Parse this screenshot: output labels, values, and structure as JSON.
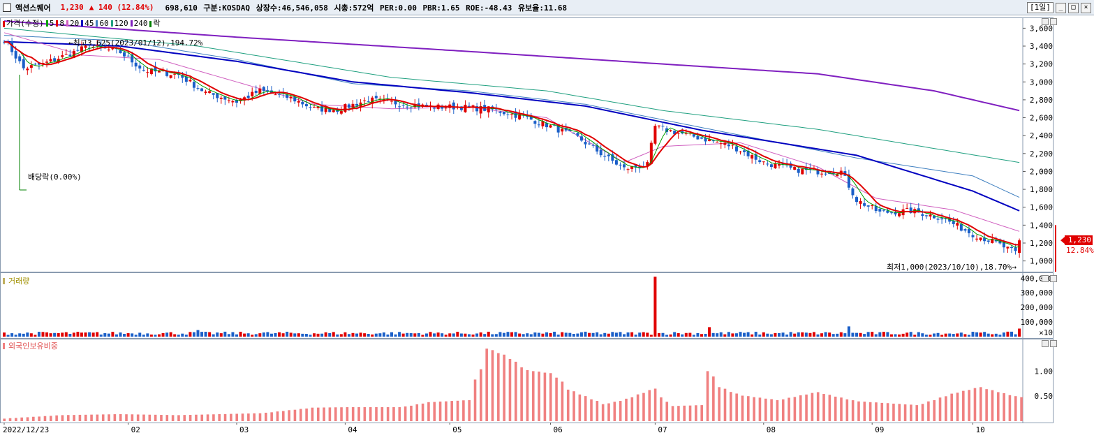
{
  "header": {
    "name": "액션스퀘어",
    "price": "1,230",
    "change": "▲ 140 (12.84%)",
    "info": "698,610  구분:KOSDAQ 상장수:46,546,058 시총:572억  PER:0.00 PBR:1.65 ROE:-48.43 유보율:11.68",
    "period": "[1일]",
    "btn_min": "_",
    "btn_max": "□",
    "btn_close": "×"
  },
  "legend": {
    "price": [
      "가격(수정)",
      "5",
      "8",
      "20",
      "45",
      "60",
      "120",
      "240",
      "락"
    ],
    "price_colors": [
      "#e00000",
      "#00a000",
      "#e00000",
      "#d060c0",
      "#0000c0",
      "#4080c0",
      "#20a080",
      "#8020c0",
      "#008000"
    ],
    "volume": "거래량",
    "foreign": "외국인보유비중"
  },
  "annotations": {
    "high": "최고3,625(2023/01/12),194.72%",
    "low": "최저1,000(2023/10/10),18.70%",
    "dividend": "배당락(0.00%)"
  },
  "current": {
    "price_label": "1,230",
    "pct_label": "12.84%"
  },
  "colors": {
    "up": "#e00000",
    "down": "#1a5fc8",
    "ma5": "#00a000",
    "ma8": "#e00000",
    "ma20": "#d060c0",
    "ma45": "#0000c0",
    "ma60": "#4080c0",
    "ma120": "#20a080",
    "ma240": "#8020c0",
    "foreign": "#f08080"
  },
  "chart_data": [
    {
      "type": "candlestick",
      "title": "",
      "x": [
        "2022/12/23",
        "02",
        "03",
        "04",
        "05",
        "06",
        "07",
        "08",
        "09",
        "10"
      ],
      "y_ticks": [
        1000,
        1200,
        1400,
        1600,
        1800,
        2000,
        2200,
        2400,
        2600,
        2800,
        3000,
        3200,
        3400,
        3600
      ],
      "y_tick_labels": [
        "1,000",
        "1,200",
        "1,400",
        "1,600",
        "1,800",
        "2,000",
        "2,200",
        "2,400",
        "2,600",
        "2,800",
        "3,000",
        "3,200",
        "3,400",
        "3,600"
      ],
      "ylim": [
        880,
        3720
      ],
      "close_anchors": [
        [
          0,
          3480
        ],
        [
          5,
          3150
        ],
        [
          10,
          3200
        ],
        [
          16,
          3300
        ],
        [
          22,
          3400
        ],
        [
          30,
          3330
        ],
        [
          36,
          3130
        ],
        [
          45,
          3080
        ],
        [
          52,
          2880
        ],
        [
          60,
          2780
        ],
        [
          66,
          2900
        ],
        [
          74,
          2820
        ],
        [
          80,
          2700
        ],
        [
          86,
          2690
        ],
        [
          94,
          2800
        ],
        [
          102,
          2760
        ],
        [
          110,
          2720
        ],
        [
          118,
          2720
        ],
        [
          126,
          2690
        ],
        [
          134,
          2610
        ],
        [
          140,
          2520
        ],
        [
          148,
          2380
        ],
        [
          154,
          2200
        ],
        [
          160,
          2030
        ],
        [
          166,
          2070
        ],
        [
          168,
          2500
        ],
        [
          172,
          2450
        ],
        [
          180,
          2370
        ],
        [
          188,
          2280
        ],
        [
          196,
          2100
        ],
        [
          204,
          2020
        ],
        [
          210,
          2000
        ],
        [
          216,
          2000
        ],
        [
          220,
          1680
        ],
        [
          226,
          1540
        ],
        [
          234,
          1560
        ],
        [
          242,
          1480
        ],
        [
          250,
          1300
        ],
        [
          256,
          1200
        ],
        [
          261,
          1090
        ],
        [
          262,
          1230
        ]
      ],
      "ma240_anchors": [
        [
          0,
          3680
        ],
        [
          60,
          3500
        ],
        [
          120,
          3340
        ],
        [
          170,
          3200
        ],
        [
          210,
          3090
        ],
        [
          240,
          2900
        ],
        [
          262,
          2680
        ]
      ],
      "ma120_anchors": [
        [
          0,
          3600
        ],
        [
          50,
          3400
        ],
        [
          100,
          3050
        ],
        [
          140,
          2900
        ],
        [
          170,
          2680
        ],
        [
          210,
          2470
        ],
        [
          262,
          2100
        ]
      ],
      "ma60_anchors": [
        [
          0,
          3520
        ],
        [
          30,
          3460
        ],
        [
          60,
          3250
        ],
        [
          90,
          2980
        ],
        [
          120,
          2900
        ],
        [
          150,
          2750
        ],
        [
          180,
          2490
        ],
        [
          220,
          2150
        ],
        [
          250,
          1950
        ],
        [
          262,
          1710
        ]
      ],
      "ma45_anchors": [
        [
          0,
          3450
        ],
        [
          30,
          3400
        ],
        [
          60,
          3230
        ],
        [
          90,
          3000
        ],
        [
          120,
          2880
        ],
        [
          150,
          2730
        ],
        [
          180,
          2460
        ],
        [
          220,
          2180
        ],
        [
          250,
          1780
        ],
        [
          262,
          1560
        ]
      ],
      "ma20_anchors": [
        [
          0,
          3550
        ],
        [
          20,
          3300
        ],
        [
          40,
          3250
        ],
        [
          60,
          3000
        ],
        [
          80,
          2750
        ],
        [
          100,
          2700
        ],
        [
          120,
          2720
        ],
        [
          140,
          2600
        ],
        [
          160,
          2100
        ],
        [
          170,
          2280
        ],
        [
          190,
          2320
        ],
        [
          210,
          2050
        ],
        [
          225,
          1700
        ],
        [
          245,
          1570
        ],
        [
          262,
          1330
        ]
      ],
      "volume_ticks": [
        100000,
        200000,
        300000,
        400000
      ],
      "volume_tick_labels": [
        "100,000",
        "200,000",
        "300,000",
        "400,000"
      ],
      "volume_unit": "×10",
      "volume_spikes": [
        [
          50,
          45000
        ],
        [
          168,
          410000
        ],
        [
          182,
          65000
        ],
        [
          218,
          70000
        ],
        [
          262,
          55000
        ]
      ],
      "foreign_ticks": [
        0.5,
        1.0
      ],
      "foreign_tick_labels": [
        "0.50",
        "1.00"
      ],
      "foreign_anchors": [
        [
          0,
          0.05
        ],
        [
          15,
          0.12
        ],
        [
          30,
          0.14
        ],
        [
          45,
          0.12
        ],
        [
          67,
          0.16
        ],
        [
          80,
          0.27
        ],
        [
          90,
          0.28
        ],
        [
          103,
          0.28
        ],
        [
          110,
          0.38
        ],
        [
          120,
          0.42
        ],
        [
          125,
          1.45
        ],
        [
          130,
          1.3
        ],
        [
          135,
          1.02
        ],
        [
          142,
          0.95
        ],
        [
          146,
          0.63
        ],
        [
          155,
          0.34
        ],
        [
          160,
          0.42
        ],
        [
          168,
          0.65
        ],
        [
          172,
          0.3
        ],
        [
          180,
          0.32
        ],
        [
          182,
          1.0
        ],
        [
          185,
          0.68
        ],
        [
          190,
          0.52
        ],
        [
          200,
          0.42
        ],
        [
          210,
          0.58
        ],
        [
          220,
          0.4
        ],
        [
          236,
          0.32
        ],
        [
          240,
          0.42
        ],
        [
          245,
          0.55
        ],
        [
          252,
          0.68
        ],
        [
          262,
          0.48
        ]
      ]
    }
  ]
}
